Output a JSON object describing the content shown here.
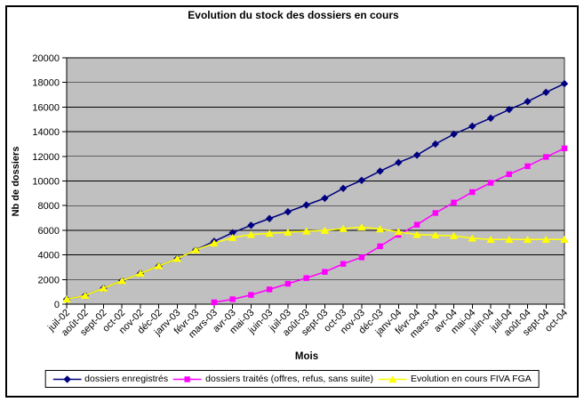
{
  "window": {
    "background": "#FFFFFF",
    "frame_color": "#000000"
  },
  "colors": {
    "plot_background": "#C0C0C0",
    "grid": "#000000",
    "axis": "#000000",
    "text": "#000000"
  },
  "chart_data": {
    "type": "line",
    "title": "Evolution du stock des dossiers en cours",
    "xlabel": "Mois",
    "ylabel": "Nb de dossiers",
    "ylim": [
      0,
      20000
    ],
    "ytick_step": 2000,
    "grid": true,
    "legend_position": "bottom",
    "categories": [
      "juil-02",
      "août-02",
      "sept-02",
      "oct-02",
      "nov-02",
      "déc-02",
      "janv-03",
      "févr-03",
      "mars-03",
      "avr-03",
      "mai-03",
      "juin-03",
      "juil-03",
      "août-03",
      "sept-03",
      "oct-03",
      "nov-03",
      "déc-03",
      "janv-04",
      "févr-04",
      "mars-04",
      "avr-04",
      "mai-04",
      "juin-04",
      "juil-04",
      "août-04",
      "sept-04",
      "oct-04"
    ],
    "series": [
      {
        "name": "dossiers enregistrés",
        "color": "#000080",
        "marker": "diamond",
        "values": [
          400,
          700,
          1300,
          1900,
          2500,
          3100,
          3700,
          4400,
          5100,
          5800,
          6400,
          6950,
          7500,
          8050,
          8600,
          9400,
          10050,
          10800,
          11500,
          12100,
          13000,
          13800,
          14450,
          15100,
          15800,
          16450,
          17200,
          17900
        ]
      },
      {
        "name": "dossiers traités (offres, refus, sans suite)",
        "color": "#FF00FF",
        "marker": "square",
        "values": [
          null,
          null,
          null,
          null,
          null,
          null,
          null,
          null,
          150,
          400,
          750,
          1200,
          1660,
          2120,
          2620,
          3270,
          3800,
          4700,
          5630,
          6450,
          7400,
          8250,
          9100,
          9850,
          10550,
          11200,
          11950,
          12650
        ]
      },
      {
        "name": "Evolution en cours FIVA FGA",
        "color": "#FFFF00",
        "marker": "triangle",
        "values": [
          400,
          700,
          1300,
          1900,
          2500,
          3100,
          3700,
          4400,
          4950,
          5400,
          5650,
          5750,
          5840,
          5930,
          5980,
          6130,
          6250,
          6100,
          5870,
          5650,
          5600,
          5550,
          5350,
          5250,
          5250,
          5250,
          5250,
          5250
        ]
      }
    ]
  }
}
